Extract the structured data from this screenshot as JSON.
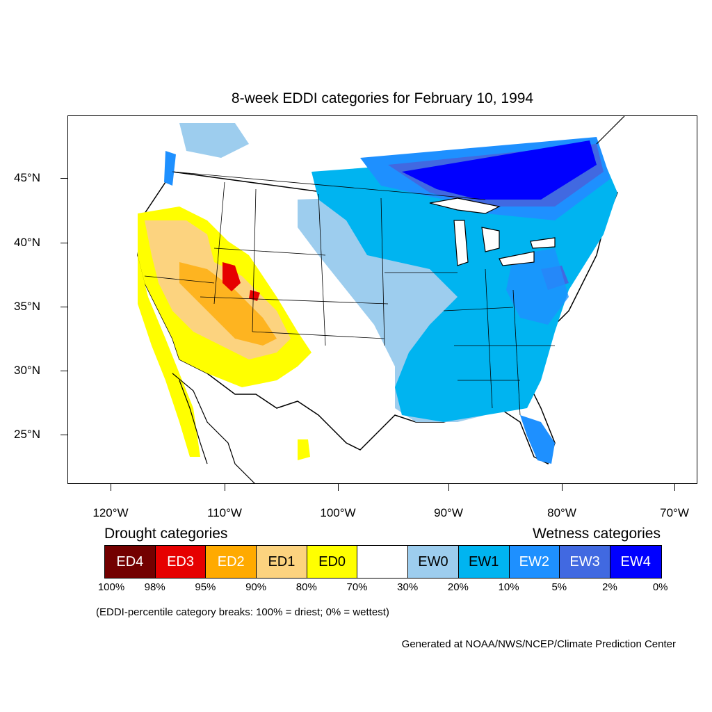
{
  "title": "8-week EDDI categories for February 10, 1994",
  "lat_labels": [
    "45°N",
    "40°N",
    "35°N",
    "30°N",
    "25°N"
  ],
  "lon_labels": [
    "120°W",
    "110°W",
    "100°W",
    "90°W",
    "80°W",
    "70°W"
  ],
  "legend": {
    "drought_heading": "Drought categories",
    "wetness_heading": "Wetness categories",
    "categories": [
      {
        "label": "ED4",
        "color": "#730000",
        "text_color": "#ffffff"
      },
      {
        "label": "ED3",
        "color": "#e60000",
        "text_color": "#ffffff"
      },
      {
        "label": "ED2",
        "color": "#ffaa00",
        "text_color": "#ffffff"
      },
      {
        "label": "ED1",
        "color": "#fcd37f",
        "text_color": "#000000"
      },
      {
        "label": "ED0",
        "color": "#ffff00",
        "text_color": "#000000"
      },
      {
        "label": "",
        "color": "#ffffff",
        "text_color": "#000000"
      },
      {
        "label": "EW0",
        "color": "#9dcdee",
        "text_color": "#000000"
      },
      {
        "label": "EW1",
        "color": "#00b4f0",
        "text_color": "#000000"
      },
      {
        "label": "EW2",
        "color": "#1e90ff",
        "text_color": "#ffffff"
      },
      {
        "label": "EW3",
        "color": "#4169e1",
        "text_color": "#ffffff"
      },
      {
        "label": "EW4",
        "color": "#0000ff",
        "text_color": "#ffffff"
      }
    ],
    "percentiles": [
      "100%",
      "98%",
      "95%",
      "90%",
      "80%",
      "70%",
      "30%",
      "20%",
      "10%",
      "5%",
      "2%",
      "0%"
    ]
  },
  "note": "(EDDI-percentile category breaks: 100% = driest; 0% = wettest)",
  "credit": "Generated at NOAA/NWS/NCEP/Climate Prediction Center"
}
